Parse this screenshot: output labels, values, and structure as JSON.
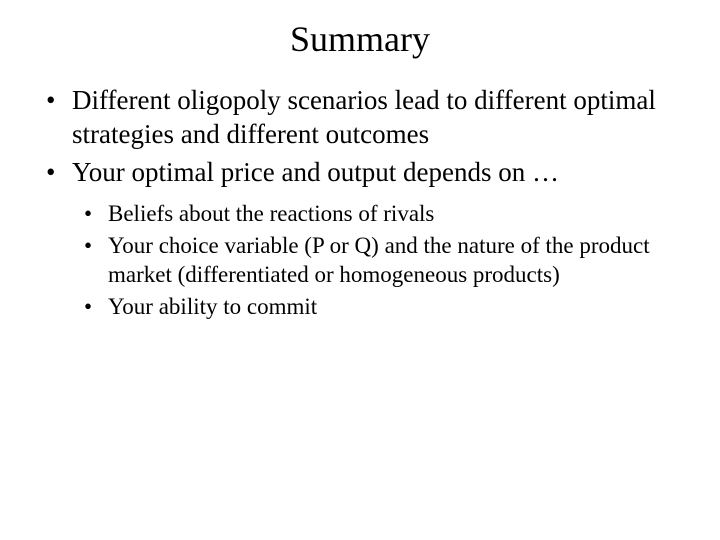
{
  "title": "Summary",
  "main_bullets": [
    "Different oligopoly scenarios lead to different optimal strategies and different outcomes",
    "Your optimal price and output depends on …"
  ],
  "sub_bullets": [
    "Beliefs about the reactions of rivals",
    "Your choice variable (P or Q) and the nature of the product market (differentiated or homogeneous products)",
    "Your ability to commit"
  ],
  "colors": {
    "background": "#ffffff",
    "text": "#000000"
  },
  "fonts": {
    "family": "Times New Roman",
    "title_size": 36,
    "main_size": 27,
    "sub_size": 23
  }
}
